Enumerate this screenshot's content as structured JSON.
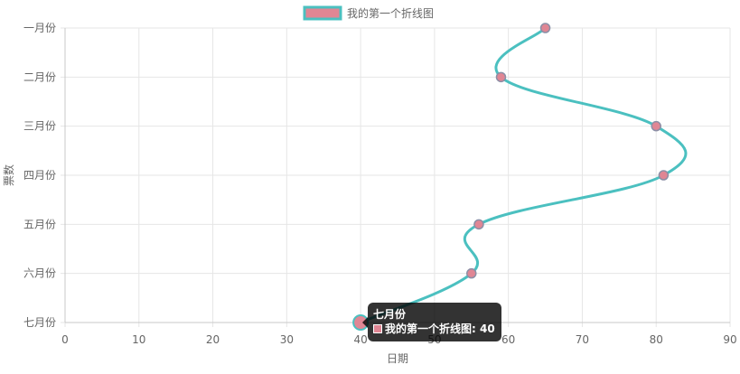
{
  "chart_data": {
    "type": "line",
    "orientation": "horizontal-value-axis",
    "categories": [
      "一月份",
      "二月份",
      "三月份",
      "四月份",
      "五月份",
      "六月份",
      "七月份"
    ],
    "series": [
      {
        "name": "我的第一个折线图",
        "values": [
          65,
          59,
          80,
          81,
          56,
          55,
          40
        ]
      }
    ],
    "xlabel": "日期",
    "ylabel": "票数",
    "xlim": [
      0,
      90
    ],
    "x_ticks": [
      "0",
      "10",
      "20",
      "30",
      "40",
      "50",
      "60",
      "70",
      "80",
      "90"
    ],
    "grid": true,
    "legend_position": "top",
    "colors": {
      "line": "#4bc0c0",
      "point_fill": "#e08694",
      "point_border": "#8c8fa6",
      "grid": "#e6e6e6"
    }
  },
  "tooltip": {
    "title": "七月份",
    "label": "我的第一个折线图: 40",
    "category_index": 6,
    "value": 40
  }
}
